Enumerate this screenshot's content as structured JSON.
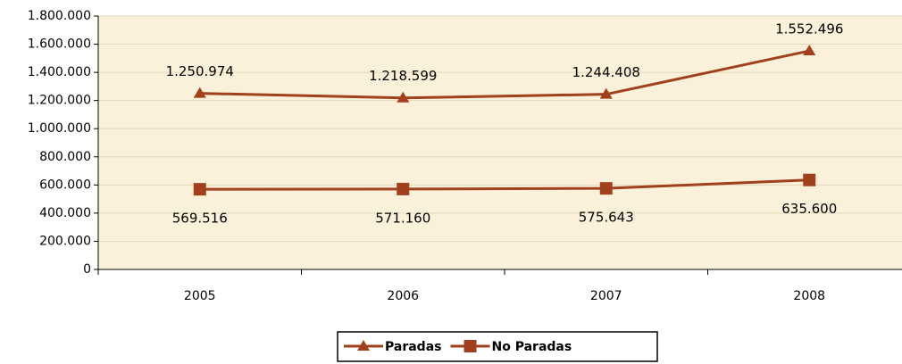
{
  "chart_data": {
    "type": "line",
    "categories": [
      "2005",
      "2006",
      "2007",
      "2008"
    ],
    "series": [
      {
        "name": "Paradas",
        "color": "#a0401c",
        "marker": "triangle",
        "values": [
          1250974,
          1218599,
          1244408,
          1552496
        ],
        "value_labels": [
          "1.250.974",
          "1.218.599",
          "1.244.408",
          "1.552.496"
        ]
      },
      {
        "name": "No Paradas",
        "color": "#a0401c",
        "marker": "square",
        "values": [
          569516,
          571160,
          575643,
          635600
        ],
        "value_labels": [
          "569.516",
          "571.160",
          "575.643",
          "635.600"
        ]
      }
    ],
    "ylim": [
      0,
      1800000
    ],
    "yticks": [
      0,
      {
        "value": 200000,
        "label": "200.000"
      },
      {
        "value": 400000,
        "label": "400.000"
      },
      {
        "value": 600000,
        "label": "600.000"
      },
      {
        "value": 800000,
        "label": "800.000"
      },
      {
        "value": 1000000,
        "label": "1.000.000"
      },
      {
        "value": 1200000,
        "label": "1.200.000"
      },
      {
        "value": 1400000,
        "label": "1.400.000"
      },
      {
        "value": 1600000,
        "label": "1.600.000"
      },
      {
        "value": 1800000,
        "label": "1.800.000"
      }
    ],
    "grid": true,
    "legend": "bottom"
  }
}
